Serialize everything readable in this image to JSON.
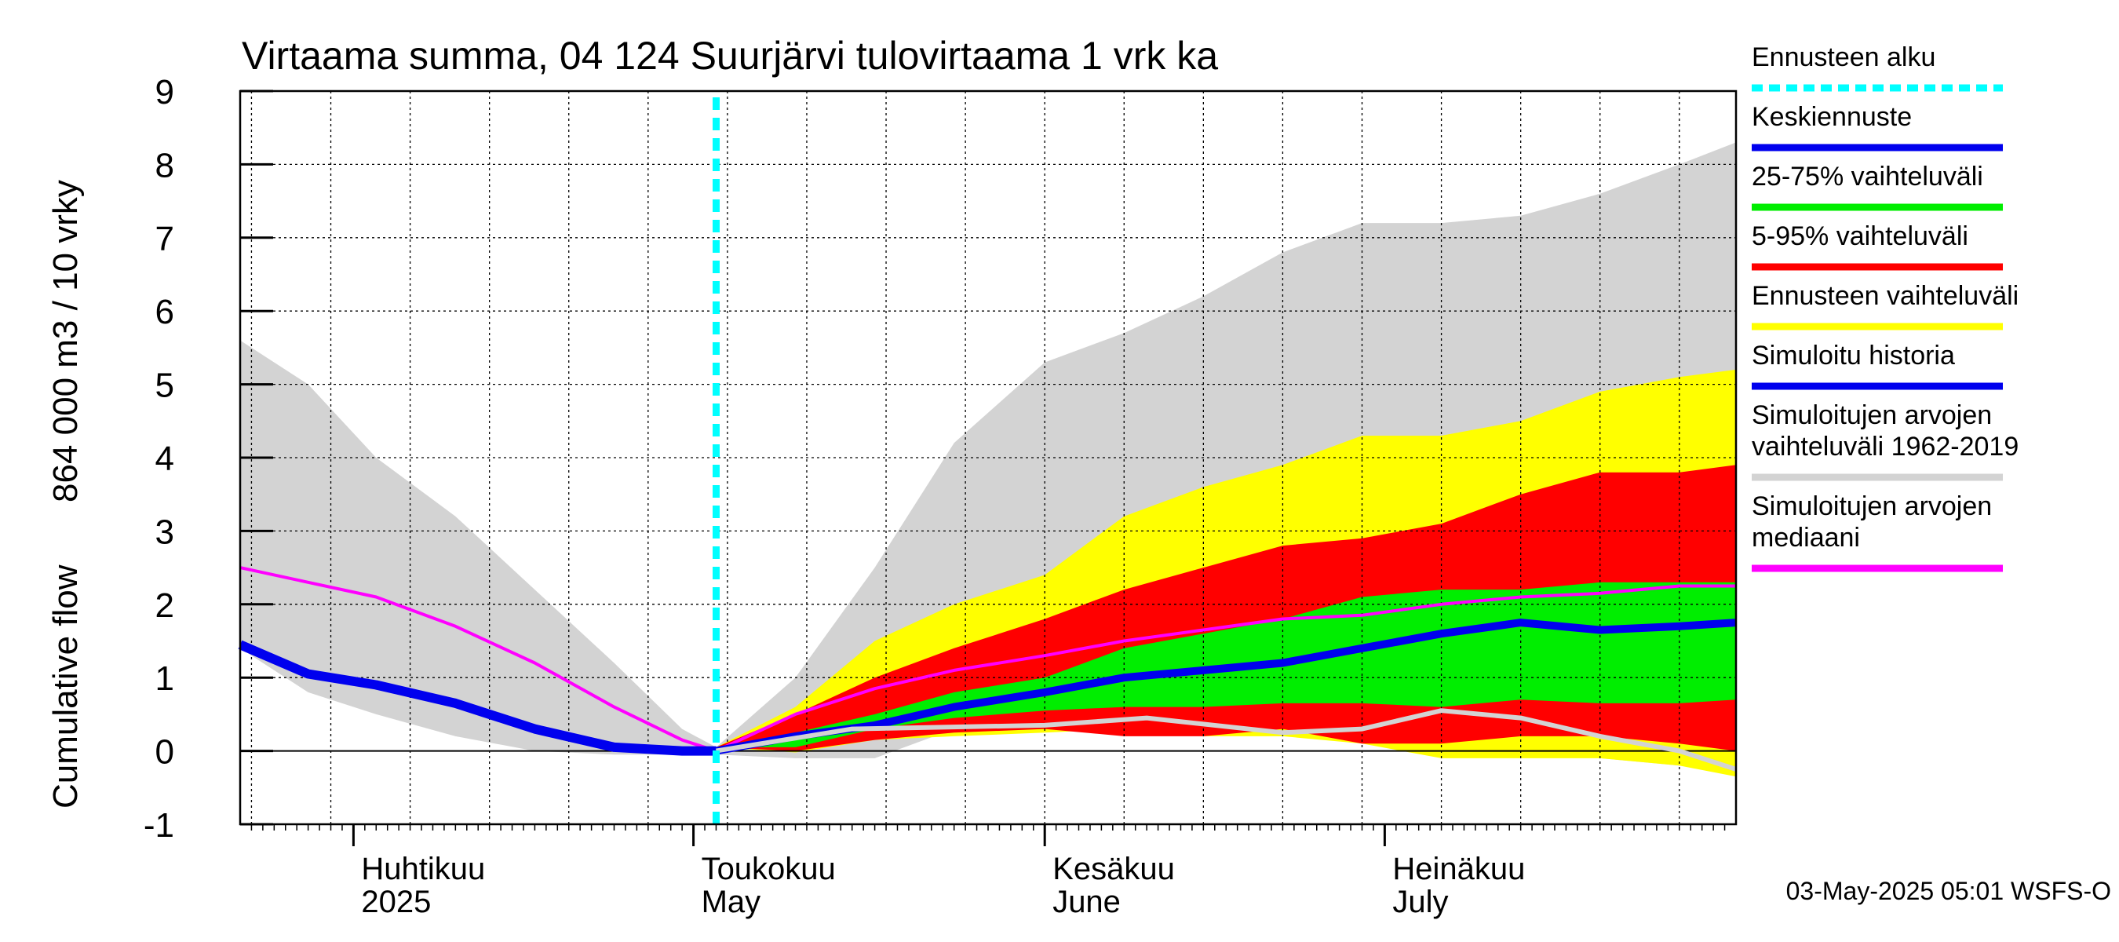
{
  "chart_data": {
    "type": "area",
    "title": "Virtaama summa, 04 124 Suurjärvi tulovirtaama 1 vrk ka",
    "ylabel_fi": "Cumulative flow",
    "ylabel_unit": "864 000 m3 / 10 vrky",
    "ylim": [
      -1,
      9
    ],
    "yticks": [
      "-1",
      "0",
      "1",
      "2",
      "3",
      "4",
      "5",
      "6",
      "7",
      "8",
      "9"
    ],
    "xlim": [
      "2025-03-22",
      "2025-08-01"
    ],
    "forecast_start": "2025-05-03",
    "grid": true,
    "legend_position": "right",
    "month_labels": [
      {
        "date": "2025-04-01",
        "fi": "Huhtikuu",
        "en": "2025"
      },
      {
        "date": "2025-05-01",
        "fi": "Toukokuu",
        "en": "May"
      },
      {
        "date": "2025-06-01",
        "fi": "Kesäkuu",
        "en": "June"
      },
      {
        "date": "2025-07-01",
        "fi": "Heinäkuu",
        "en": "July"
      }
    ],
    "series": [
      {
        "name": "Simuloitujen arvojen vaihteluväli 1962-2019",
        "color": "#d3d3d3",
        "x": [
          "2025-03-22",
          "2025-03-28",
          "2025-04-03",
          "2025-04-10",
          "2025-04-17",
          "2025-04-24",
          "2025-04-30",
          "2025-05-03",
          "2025-05-10",
          "2025-05-17",
          "2025-05-24",
          "2025-06-01",
          "2025-06-08",
          "2025-06-15",
          "2025-06-22",
          "2025-06-29",
          "2025-07-06",
          "2025-07-13",
          "2025-07-20",
          "2025-07-27",
          "2025-08-01"
        ],
        "upper": [
          5.6,
          5.0,
          4.0,
          3.2,
          2.2,
          1.2,
          0.3,
          0.05,
          1.0,
          2.5,
          4.2,
          5.3,
          5.7,
          6.2,
          6.8,
          7.2,
          7.2,
          7.3,
          7.6,
          8.0,
          8.3
        ],
        "lower": [
          1.4,
          0.8,
          0.5,
          0.2,
          0.0,
          -0.05,
          -0.05,
          -0.05,
          -0.1,
          -0.1,
          0.3,
          0.35,
          0.35,
          0.3,
          0.3,
          0.2,
          0.1,
          0.0,
          -0.1,
          -0.2,
          -0.3
        ]
      },
      {
        "name": "Ennusteen vaihteluväli",
        "color": "#ffff00",
        "x": [
          "2025-05-03",
          "2025-05-10",
          "2025-05-17",
          "2025-05-24",
          "2025-06-01",
          "2025-06-08",
          "2025-06-15",
          "2025-06-22",
          "2025-06-29",
          "2025-07-06",
          "2025-07-13",
          "2025-07-20",
          "2025-07-27",
          "2025-08-01"
        ],
        "upper": [
          0.05,
          0.6,
          1.5,
          2.0,
          2.4,
          3.2,
          3.6,
          3.9,
          4.3,
          4.3,
          4.5,
          4.9,
          5.1,
          5.2
        ],
        "lower": [
          0.05,
          -0.02,
          0.15,
          0.2,
          0.25,
          0.3,
          0.2,
          0.2,
          0.1,
          -0.1,
          -0.1,
          -0.1,
          -0.2,
          -0.35
        ]
      },
      {
        "name": "5-95% vaihteluväli",
        "color": "#ff0000",
        "x": [
          "2025-05-03",
          "2025-05-10",
          "2025-05-17",
          "2025-05-24",
          "2025-06-01",
          "2025-06-08",
          "2025-06-15",
          "2025-06-22",
          "2025-06-29",
          "2025-07-06",
          "2025-07-13",
          "2025-07-20",
          "2025-07-27",
          "2025-08-01"
        ],
        "upper": [
          0.05,
          0.5,
          1.0,
          1.4,
          1.8,
          2.2,
          2.5,
          2.8,
          2.9,
          3.1,
          3.5,
          3.8,
          3.8,
          3.9
        ],
        "lower": [
          0.05,
          0.0,
          0.15,
          0.25,
          0.3,
          0.2,
          0.2,
          0.3,
          0.1,
          0.1,
          0.2,
          0.2,
          0.1,
          0.0
        ]
      },
      {
        "name": "25-75% vaihteluväli",
        "color": "#00ee00",
        "x": [
          "2025-05-03",
          "2025-05-10",
          "2025-05-17",
          "2025-05-24",
          "2025-06-01",
          "2025-06-08",
          "2025-06-15",
          "2025-06-22",
          "2025-06-29",
          "2025-07-06",
          "2025-07-13",
          "2025-07-20",
          "2025-07-27",
          "2025-08-01"
        ],
        "upper": [
          0.05,
          0.25,
          0.5,
          0.8,
          1.0,
          1.4,
          1.6,
          1.8,
          2.1,
          2.2,
          2.2,
          2.3,
          2.3,
          2.3
        ],
        "lower": [
          0.05,
          0.05,
          0.3,
          0.45,
          0.55,
          0.6,
          0.6,
          0.65,
          0.65,
          0.6,
          0.7,
          0.65,
          0.65,
          0.7
        ]
      },
      {
        "name": "Simuloitujen arvojen mediaani",
        "color": "#ff00ff",
        "x": [
          "2025-03-22",
          "2025-03-28",
          "2025-04-03",
          "2025-04-10",
          "2025-04-17",
          "2025-04-24",
          "2025-04-30",
          "2025-05-03",
          "2025-05-10",
          "2025-05-17",
          "2025-05-24",
          "2025-06-01",
          "2025-06-08",
          "2025-06-15",
          "2025-06-22",
          "2025-06-29",
          "2025-07-06",
          "2025-07-13",
          "2025-07-20",
          "2025-07-27",
          "2025-08-01"
        ],
        "y": [
          2.5,
          2.3,
          2.1,
          1.7,
          1.2,
          0.6,
          0.15,
          0.0,
          0.5,
          0.85,
          1.1,
          1.3,
          1.5,
          1.65,
          1.8,
          1.85,
          2.0,
          2.1,
          2.15,
          2.25,
          2.25
        ]
      },
      {
        "name": "Simuloitu historia",
        "color": "#0000ee",
        "x": [
          "2025-03-22",
          "2025-03-28",
          "2025-04-03",
          "2025-04-10",
          "2025-04-17",
          "2025-04-24",
          "2025-04-30",
          "2025-05-03"
        ],
        "y": [
          1.45,
          1.05,
          0.9,
          0.65,
          0.3,
          0.05,
          0.0,
          0.0
        ]
      },
      {
        "name": "Keskiennuste",
        "color": "#0000ee",
        "x": [
          "2025-05-03",
          "2025-05-10",
          "2025-05-17",
          "2025-05-24",
          "2025-06-01",
          "2025-06-08",
          "2025-06-15",
          "2025-06-22",
          "2025-06-29",
          "2025-07-06",
          "2025-07-13",
          "2025-07-20",
          "2025-07-27",
          "2025-08-01"
        ],
        "y": [
          0.0,
          0.2,
          0.35,
          0.6,
          0.8,
          1.0,
          1.1,
          1.2,
          1.4,
          1.6,
          1.75,
          1.65,
          1.7,
          1.75
        ]
      },
      {
        "name": "",
        "color": "#d3d3d3",
        "x": [
          "2025-05-03",
          "2025-05-15",
          "2025-06-01",
          "2025-06-10",
          "2025-06-22",
          "2025-06-29",
          "2025-07-06",
          "2025-07-13",
          "2025-07-20",
          "2025-07-27",
          "2025-08-01"
        ],
        "y": [
          0.0,
          0.3,
          0.35,
          0.45,
          0.25,
          0.3,
          0.55,
          0.45,
          0.2,
          0.0,
          -0.25
        ]
      },
      {
        "name": "Ennusteen alku",
        "color": "#00ffff",
        "x": [
          "2025-05-03",
          "2025-05-03"
        ],
        "y": [
          -1,
          9
        ]
      }
    ]
  },
  "legend": [
    {
      "text": [
        "Ennusteen alku"
      ],
      "color": "#00ffff",
      "style": "dashed"
    },
    {
      "text": [
        "Keskiennuste"
      ],
      "color": "#0000ee",
      "style": "solid"
    },
    {
      "text": [
        "25-75% vaihteluväli"
      ],
      "color": "#00ee00",
      "style": "solid"
    },
    {
      "text": [
        "5-95% vaihteluväli"
      ],
      "color": "#ff0000",
      "style": "solid"
    },
    {
      "text": [
        "Ennusteen vaihteluväli"
      ],
      "color": "#ffff00",
      "style": "solid"
    },
    {
      "text": [
        "Simuloitu historia"
      ],
      "color": "#0000ee",
      "style": "solid"
    },
    {
      "text": [
        "Simuloitujen arvojen",
        "vaihteluväli 1962-2019"
      ],
      "color": "#d3d3d3",
      "style": "solid"
    },
    {
      "text": [
        "Simuloitujen arvojen",
        "mediaani"
      ],
      "color": "#ff00ff",
      "style": "solid"
    }
  ],
  "timestamp": "03-May-2025 05:01 WSFS-O"
}
